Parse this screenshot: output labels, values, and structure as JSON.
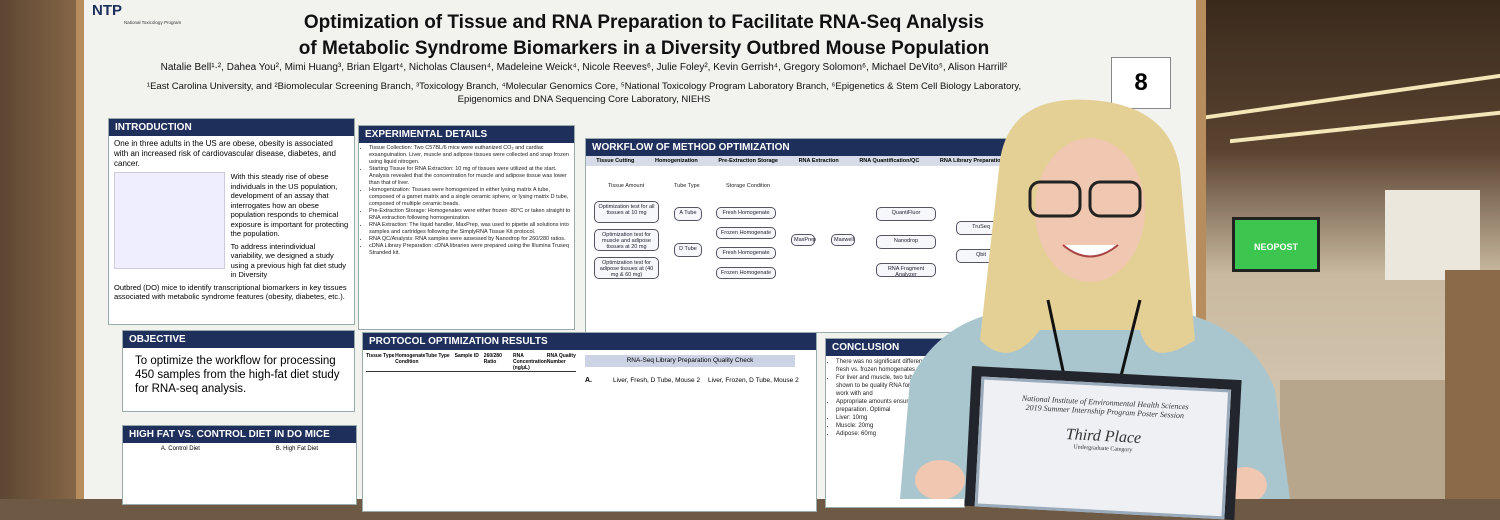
{
  "logo": {
    "name": "NTP",
    "subtitle": "National Toxicology Program"
  },
  "poster": {
    "title": [
      "Optimization of Tissue and RNA Preparation to Facilitate RNA-Seq Analysis",
      "of Metabolic Syndrome Biomarkers in a Diversity Outbred Mouse Population"
    ],
    "authors": "Natalie Bell¹·², Dahea You², Mimi Huang³, Brian Elgart⁴, Nicholas Clausen⁴, Madeleine Weick⁴, Nicole Reeves⁶, Julie Foley², Kevin Gerrish⁴, Gregory Solomon⁶, Michael DeVito⁵, Alison Harrill²",
    "affiliations": [
      "¹East Carolina University, and ²Biomolecular Screening Branch, ³Toxicology Branch, ⁴Molecular Genomics Core, ⁵National Toxicology Program Laboratory Branch, ⁶Epigenetics & Stem Cell Biology Laboratory,",
      "Epigenomics and DNA Sequencing Core Laboratory, NIEHS"
    ],
    "introduction": {
      "heading": "INTRODUCTION",
      "lead": "One in three adults in the US are obese, obesity is associated with an increased risk of cardiovascular disease, diabetes, and cancer.",
      "body": "With this steady rise of obese individuals in the US population, development of an assay that interrogates how an obese population responds to chemical exposure is important for protecting the population.",
      "body2": "To address interindividual variability, we designed a study using a previous high fat diet study in Diversity",
      "tail": "Outbred (DO) mice to identify transcriptional biomarkers in key tissues associated with metabolic syndrome features (obesity, diabetes, etc.)."
    },
    "objective": {
      "heading": "OBJECTIVE",
      "text": "To optimize the workflow for processing 450 samples from the high-fat diet study for RNA-seq analysis."
    },
    "high_fat": {
      "heading": "HIGH FAT VS. CONTROL DIET IN DO MICE",
      "panels": [
        "A. Control Diet",
        "B. High Fat Diet"
      ]
    },
    "experimental": {
      "heading": "EXPERIMENTAL DETAILS",
      "items": [
        "Tissue Collection: Two C57BL/6 mice were euthanized CO₂ and cardiac exsanguination. Liver, muscle and adipose tissues were collected and snap frozen using liquid nitrogen.",
        "Starting Tissue for RNA Extraction: 10 mg of tissues were utilized at the start. Analysis revealed that the concentration for muscle and adipose tissue was lower than that of liver.",
        "Homogenization: Tissues were homogenized in either lysing matrix A tube, composed of a garnet matrix and a single ceramic sphere, or lysing matrix D tube, composed of multiple ceramic beads.",
        "Pre-Extraction Storage: Homogenates were either frozen -80°C or taken straight to RNA extraction following homogenization.",
        "RNA Extraction: The liquid handler, MaxPrep, was used to pipette all solutions into samples and cartridges following the SimplyRNA Tissue Kit protocol.",
        "RNA QC/Analysis: RNA samples were assessed by Nanodrop for 260/280 ratios.",
        "cDNA Library Preparation: cDNA libraries were prepared using the Illumina Truseq Stranded kit."
      ]
    },
    "workflow": {
      "heading": "WORKFLOW OF METHOD OPTIMIZATION",
      "stages": [
        "Tissue Cutting",
        "Homogenization",
        "Pre-Extraction Storage",
        "RNA Extraction",
        "RNA Quantification/QC",
        "RNA Library Preparation/QC"
      ],
      "labels": [
        "Tissue Amount",
        "Tube Type",
        "Storage Condition"
      ],
      "tissue": [
        "Optimization test for all tissues at 10 mg",
        "Optimization test for muscle and adipose tissues at 20 mg",
        "Optimization test for adipose tissues at (40 mg & 60 mg)"
      ],
      "tubes": [
        "A Tube",
        "D Tube"
      ],
      "storage": [
        "Fresh Homogenate",
        "Frozen Homogenate",
        "Fresh Homogenate",
        "Frozen Homogenate"
      ],
      "extraction": [
        "MaxPrep",
        "Maxwell"
      ],
      "qc": [
        "QuantiFluor",
        "Nanodrop",
        "RNA Fragment Analyzer"
      ],
      "library": [
        "TruSeq",
        "Qbit"
      ]
    },
    "results": {
      "heading": "PROTOCOL OPTIMIZATION RESULTS",
      "columns": [
        "Tissue Type",
        "Homogenate Condition",
        "Tube Type",
        "Sample ID",
        "260/280 Ratio",
        "RNA Concentration (ng/µL)",
        "RNA Quality Number"
      ],
      "check": "RNA-Seq Library Preparation Quality Check",
      "panel": "A.",
      "plots": [
        "Liver, Fresh, D Tube, Mouse 2",
        "Liver, Frozen, D Tube, Mouse 2"
      ]
    },
    "conclusion": {
      "heading": "CONCLUSION",
      "items": [
        "There was no significant difference between fresh vs. frozen homogenates will be preferred",
        "For liver and muscle, two tubes and D, were not shown to be quality RNA for adipose easier to work with and",
        "Appropriate amounts ensure the sufficient preparation. Optimal",
        "Liver: 10mg",
        "Muscle: 20mg",
        "Adipose: 60mg"
      ]
    }
  },
  "board_number": "8",
  "monitor": "NEOPOST",
  "certificate": {
    "lines": [
      "National Institute of Environmental Health Sciences",
      "2019 Summer Internship Program Poster Session"
    ],
    "place": "Third Place",
    "category": "Undergraduate Category"
  }
}
